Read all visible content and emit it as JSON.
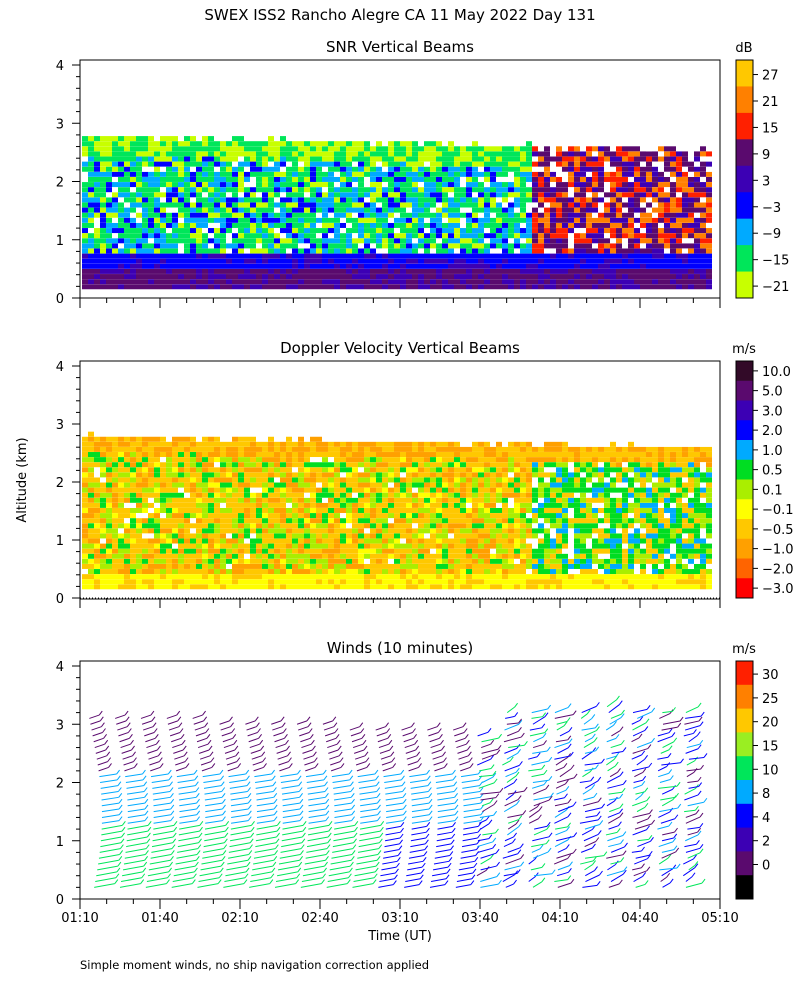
{
  "title": "SWEX ISS2 Rancho Alegre CA  11 May 2022 Day 131",
  "footnote": "Simple moment winds, no ship navigation correction applied",
  "y_axis_label": "Altitude (km)",
  "x_axis_label": "Time (UT)",
  "chart_data": [
    {
      "type": "heatmap",
      "title": "SNR Vertical Beams",
      "colorbar_unit": "dB",
      "colorbar_labels": [
        "27",
        "21",
        "15",
        "9",
        "3",
        "−3",
        "−9",
        "−15",
        "−21"
      ],
      "colorbar_colors": [
        "#ffc800",
        "#ff8000",
        "#ff2000",
        "#5a0a6e",
        "#3c00b4",
        "#0000ff",
        "#00aaff",
        "#00e65a",
        "#c8ff00"
      ],
      "x_range": [
        "01:10",
        "05:10"
      ],
      "ylim": [
        0,
        4
      ],
      "y_ticks": [
        "0",
        "1",
        "2",
        "3",
        "4"
      ]
    },
    {
      "type": "heatmap",
      "title": "Doppler Velocity Vertical Beams",
      "colorbar_unit": "m/s",
      "colorbar_labels": [
        "10.0",
        "5.0",
        "3.0",
        "2.0",
        "1.0",
        "0.5",
        "0.1",
        "−0.1",
        "−0.5",
        "−1.0",
        "−2.0",
        "−3.0"
      ],
      "colorbar_colors": [
        "#320a28",
        "#5a0a6e",
        "#3c00b4",
        "#0000ff",
        "#00aaff",
        "#00dd22",
        "#aaee00",
        "#ffff00",
        "#ffc800",
        "#ffa000",
        "#ff6400",
        "#ff0000"
      ],
      "x_range": [
        "01:10",
        "05:10"
      ],
      "ylim": [
        0,
        4
      ],
      "y_ticks": [
        "0",
        "1",
        "2",
        "3",
        "4"
      ]
    },
    {
      "type": "wind-barbs",
      "title": "Winds (10 minutes)",
      "colorbar_unit": "m/s",
      "colorbar_labels": [
        "30",
        "25",
        "20",
        "15",
        "10",
        "8",
        "4",
        "2",
        "0"
      ],
      "colorbar_colors": [
        "#ff2000",
        "#ff8000",
        "#ffc800",
        "#9aee22",
        "#00e65a",
        "#00aaff",
        "#0000ff",
        "#3c00b4",
        "#5a0a6e",
        "#000000"
      ],
      "x_ticks": [
        "01:10",
        "01:40",
        "02:10",
        "02:40",
        "03:10",
        "03:40",
        "04:10",
        "04:40",
        "05:10"
      ],
      "ylim": [
        0,
        4
      ],
      "y_ticks": [
        "0",
        "1",
        "2",
        "3",
        "4"
      ]
    }
  ]
}
